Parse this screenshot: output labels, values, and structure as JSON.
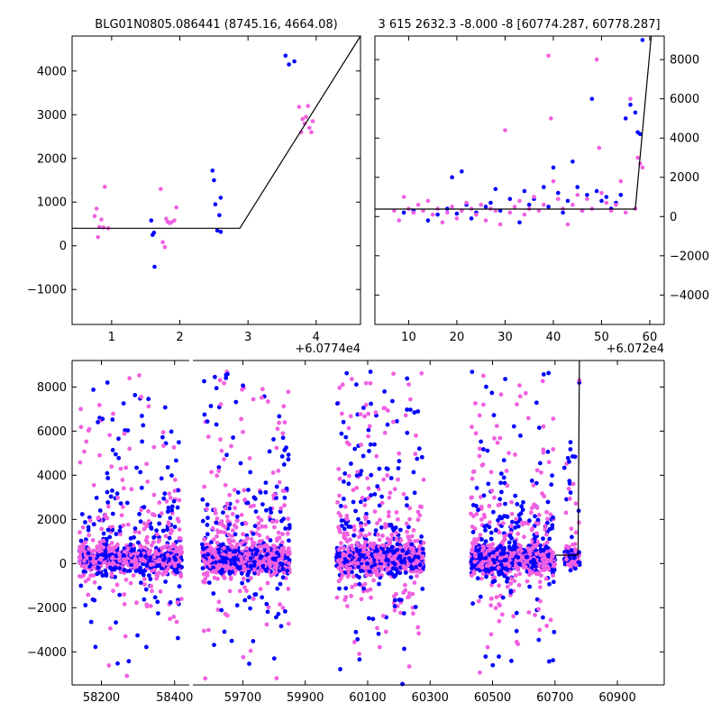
{
  "figure": {
    "top_left_title": "BLG01N0805.086441 (8745.16, 4664.08)",
    "top_right_title": "3 615 2632.3 -8.000 -8 [60774.287, 60778.287]"
  },
  "chart_data": [
    {
      "id": "top-left",
      "type": "scatter",
      "title": "BLG01N0805.086441 (8745.16, 4664.08)",
      "offset_label": "+6.0774e4",
      "xlim": [
        0.42,
        4.65
      ],
      "ylim": [
        -1800,
        4800
      ],
      "xticks": [
        1,
        2,
        3,
        4
      ],
      "yticks": [
        -1000,
        0,
        1000,
        2000,
        3000,
        4000
      ],
      "series": [
        {
          "name": "blue",
          "color": "#0000ff",
          "points": [
            [
              1.58,
              580
            ],
            [
              1.6,
              250
            ],
            [
              1.63,
              -480
            ],
            [
              1.62,
              300
            ],
            [
              2.48,
              1720
            ],
            [
              2.5,
              1500
            ],
            [
              2.52,
              950
            ],
            [
              2.55,
              350
            ],
            [
              2.6,
              320
            ],
            [
              2.6,
              1100
            ],
            [
              2.58,
              700
            ],
            [
              3.55,
              4350
            ],
            [
              3.6,
              4150
            ],
            [
              3.68,
              4220
            ]
          ]
        },
        {
          "name": "magenta",
          "color": "#f060e0",
          "points": [
            [
              0.75,
              680
            ],
            [
              0.78,
              850
            ],
            [
              0.8,
              200
            ],
            [
              0.82,
              430
            ],
            [
              0.85,
              600
            ],
            [
              0.88,
              420
            ],
            [
              0.9,
              1350
            ],
            [
              0.95,
              400
            ],
            [
              1.72,
              1300
            ],
            [
              1.75,
              80
            ],
            [
              1.78,
              -30
            ],
            [
              1.8,
              620
            ],
            [
              1.82,
              550
            ],
            [
              1.85,
              520
            ],
            [
              1.88,
              540
            ],
            [
              1.92,
              580
            ],
            [
              1.95,
              880
            ],
            [
              3.75,
              3180
            ],
            [
              3.78,
              2600
            ],
            [
              3.8,
              2900
            ],
            [
              3.83,
              2800
            ],
            [
              3.85,
              2950
            ],
            [
              3.88,
              3200
            ],
            [
              3.9,
              2700
            ],
            [
              3.93,
              2600
            ],
            [
              3.95,
              2850
            ]
          ]
        }
      ],
      "model_line": [
        [
          0.42,
          400
        ],
        [
          2.88,
          400
        ],
        [
          4.65,
          4800
        ]
      ]
    },
    {
      "id": "top-right",
      "type": "scatter",
      "title": "3 615 2632.3 -8.000 -8 [60774.287, 60778.287]",
      "offset_label": "+6.072e4",
      "xlim": [
        3,
        63
      ],
      "ylim": [
        -5500,
        9200
      ],
      "xticks": [
        10,
        20,
        30,
        40,
        50,
        60
      ],
      "yticks": [
        -4000,
        -2000,
        0,
        2000,
        4000,
        6000,
        8000
      ],
      "series": [
        {
          "name": "blue",
          "color": "#0000ff",
          "points": [
            [
              9,
              200
            ],
            [
              11,
              300
            ],
            [
              14,
              -200
            ],
            [
              16,
              100
            ],
            [
              18,
              400
            ],
            [
              19,
              2000
            ],
            [
              20,
              150
            ],
            [
              21,
              2300
            ],
            [
              22,
              600
            ],
            [
              23,
              -100
            ],
            [
              24,
              200
            ],
            [
              26,
              500
            ],
            [
              27,
              700
            ],
            [
              28,
              1400
            ],
            [
              29,
              300
            ],
            [
              31,
              900
            ],
            [
              33,
              -300
            ],
            [
              34,
              1300
            ],
            [
              35,
              600
            ],
            [
              36,
              900
            ],
            [
              38,
              1500
            ],
            [
              39,
              500
            ],
            [
              40,
              2500
            ],
            [
              41,
              1200
            ],
            [
              42,
              200
            ],
            [
              43,
              800
            ],
            [
              44,
              2800
            ],
            [
              45,
              1500
            ],
            [
              46,
              300
            ],
            [
              47,
              1100
            ],
            [
              48,
              6000
            ],
            [
              49,
              1300
            ],
            [
              50,
              800
            ],
            [
              51,
              1000
            ],
            [
              52,
              400
            ],
            [
              53,
              700
            ],
            [
              54,
              1100
            ],
            [
              55,
              5000
            ],
            [
              56,
              5700
            ],
            [
              57,
              5300
            ],
            [
              57.5,
              4300
            ],
            [
              58,
              4200
            ],
            [
              58.5,
              9000
            ]
          ]
        },
        {
          "name": "magenta",
          "color": "#f060e0",
          "points": [
            [
              7,
              300
            ],
            [
              8,
              -200
            ],
            [
              9,
              1000
            ],
            [
              10,
              400
            ],
            [
              11,
              200
            ],
            [
              12,
              600
            ],
            [
              13,
              300
            ],
            [
              14,
              800
            ],
            [
              15,
              100
            ],
            [
              16,
              400
            ],
            [
              17,
              -300
            ],
            [
              18,
              200
            ],
            [
              19,
              500
            ],
            [
              20,
              -100
            ],
            [
              21,
              300
            ],
            [
              22,
              700
            ],
            [
              23,
              400
            ],
            [
              24,
              100
            ],
            [
              25,
              600
            ],
            [
              26,
              -200
            ],
            [
              27,
              400
            ],
            [
              28,
              300
            ],
            [
              29,
              -400
            ],
            [
              30,
              4400
            ],
            [
              31,
              200
            ],
            [
              32,
              500
            ],
            [
              33,
              800
            ],
            [
              34,
              100
            ],
            [
              35,
              400
            ],
            [
              36,
              1000
            ],
            [
              37,
              300
            ],
            [
              38,
              600
            ],
            [
              39,
              8200
            ],
            [
              39.5,
              5000
            ],
            [
              40,
              1800
            ],
            [
              41,
              900
            ],
            [
              42,
              400
            ],
            [
              43,
              -400
            ],
            [
              44,
              600
            ],
            [
              45,
              1100
            ],
            [
              46,
              300
            ],
            [
              47,
              900
            ],
            [
              48,
              400
            ],
            [
              49,
              8000
            ],
            [
              49.5,
              3500
            ],
            [
              50,
              1200
            ],
            [
              51,
              700
            ],
            [
              52,
              300
            ],
            [
              53,
              600
            ],
            [
              54,
              1800
            ],
            [
              55,
              200
            ],
            [
              56,
              6000
            ],
            [
              57,
              400
            ],
            [
              57.5,
              3000
            ],
            [
              58,
              2700
            ],
            [
              58.5,
              2500
            ]
          ]
        }
      ],
      "model_line": [
        [
          3,
          380
        ],
        [
          57,
          380
        ],
        [
          60.3,
          9200
        ]
      ]
    },
    {
      "id": "bottom",
      "type": "scatter",
      "broken_axis": true,
      "xlim": [
        58120,
        61050
      ],
      "ylim": [
        -5500,
        9200
      ],
      "break_gap_after": 58440,
      "break_gap_start": 59540,
      "xticks": [
        58200,
        58400,
        59700,
        59900,
        60100,
        60300,
        60500,
        60700,
        60900
      ],
      "yticks": [
        -4000,
        -2000,
        0,
        2000,
        4000,
        6000,
        8000
      ],
      "seasons": [
        {
          "start": 58140,
          "end": 58420,
          "count": 950
        },
        {
          "start": 59570,
          "end": 59850,
          "count": 1000
        },
        {
          "start": 60000,
          "end": 60280,
          "count": 1050
        },
        {
          "start": 60430,
          "end": 60700,
          "count": 1000
        },
        {
          "start": 60730,
          "end": 60780,
          "count": 160
        }
      ],
      "colors": {
        "blue": "#0000ff",
        "magenta": "#f060e0"
      },
      "model_line": [
        [
          60700,
          380
        ],
        [
          60774,
          380
        ],
        [
          60778.3,
          9200
        ]
      ]
    }
  ]
}
